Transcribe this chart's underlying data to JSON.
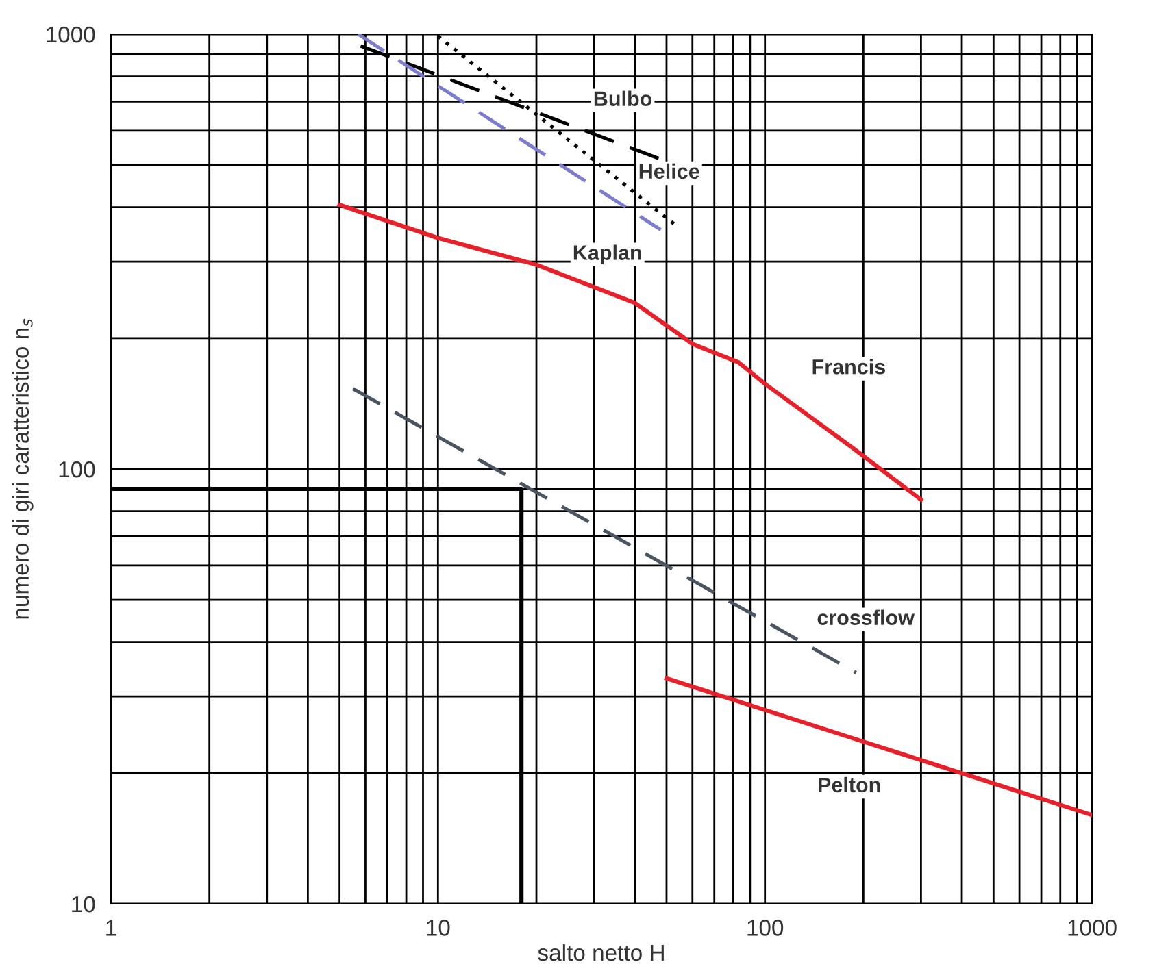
{
  "chart_data": {
    "type": "line",
    "xlabel": "salto netto H",
    "ylabel": "numero di giri caratteristico n$_{s}$",
    "log": "xy",
    "grid": true,
    "xlim": [
      1,
      1000
    ],
    "xticks": [
      1,
      10,
      100,
      1000
    ],
    "ylim": [
      10,
      1000
    ],
    "yticks": [
      10,
      100,
      1000
    ],
    "series": [
      {
        "name": "Bulbo",
        "color": "#000000",
        "line_style": "dashed",
        "x": [
          5.8,
          50
        ],
        "values": [
          940,
          510
        ]
      },
      {
        "name": "Helice",
        "color": "#000000",
        "line_style": "dotted",
        "x": [
          10,
          53
        ],
        "values": [
          990,
          365
        ]
      },
      {
        "name": "Kaplan",
        "color": "#7b7bd0",
        "line_style": "dashed",
        "x": [
          5.7,
          48
        ],
        "values": [
          1000,
          355
        ]
      },
      {
        "name": "Francis",
        "color": "#e8202a",
        "line_style": "solid",
        "x": [
          5,
          10,
          20,
          40,
          60,
          83,
          100,
          185,
          300
        ],
        "values": [
          405,
          340,
          295,
          241,
          194,
          176,
          157,
          112,
          85
        ]
      },
      {
        "name": "crossflow",
        "color": "#4a5563",
        "line_style": "dashed",
        "x": [
          5.5,
          190
        ],
        "values": [
          153,
          34
        ]
      },
      {
        "name": "Pelton",
        "color": "#e8202a",
        "line_style": "solid",
        "x": [
          50,
          1000
        ],
        "values": [
          33,
          16
        ]
      },
      {
        "color": "#000000",
        "line_style": "solid",
        "x": [
          1,
          18,
          18
        ],
        "values": [
          90,
          90,
          10
        ]
      }
    ]
  }
}
